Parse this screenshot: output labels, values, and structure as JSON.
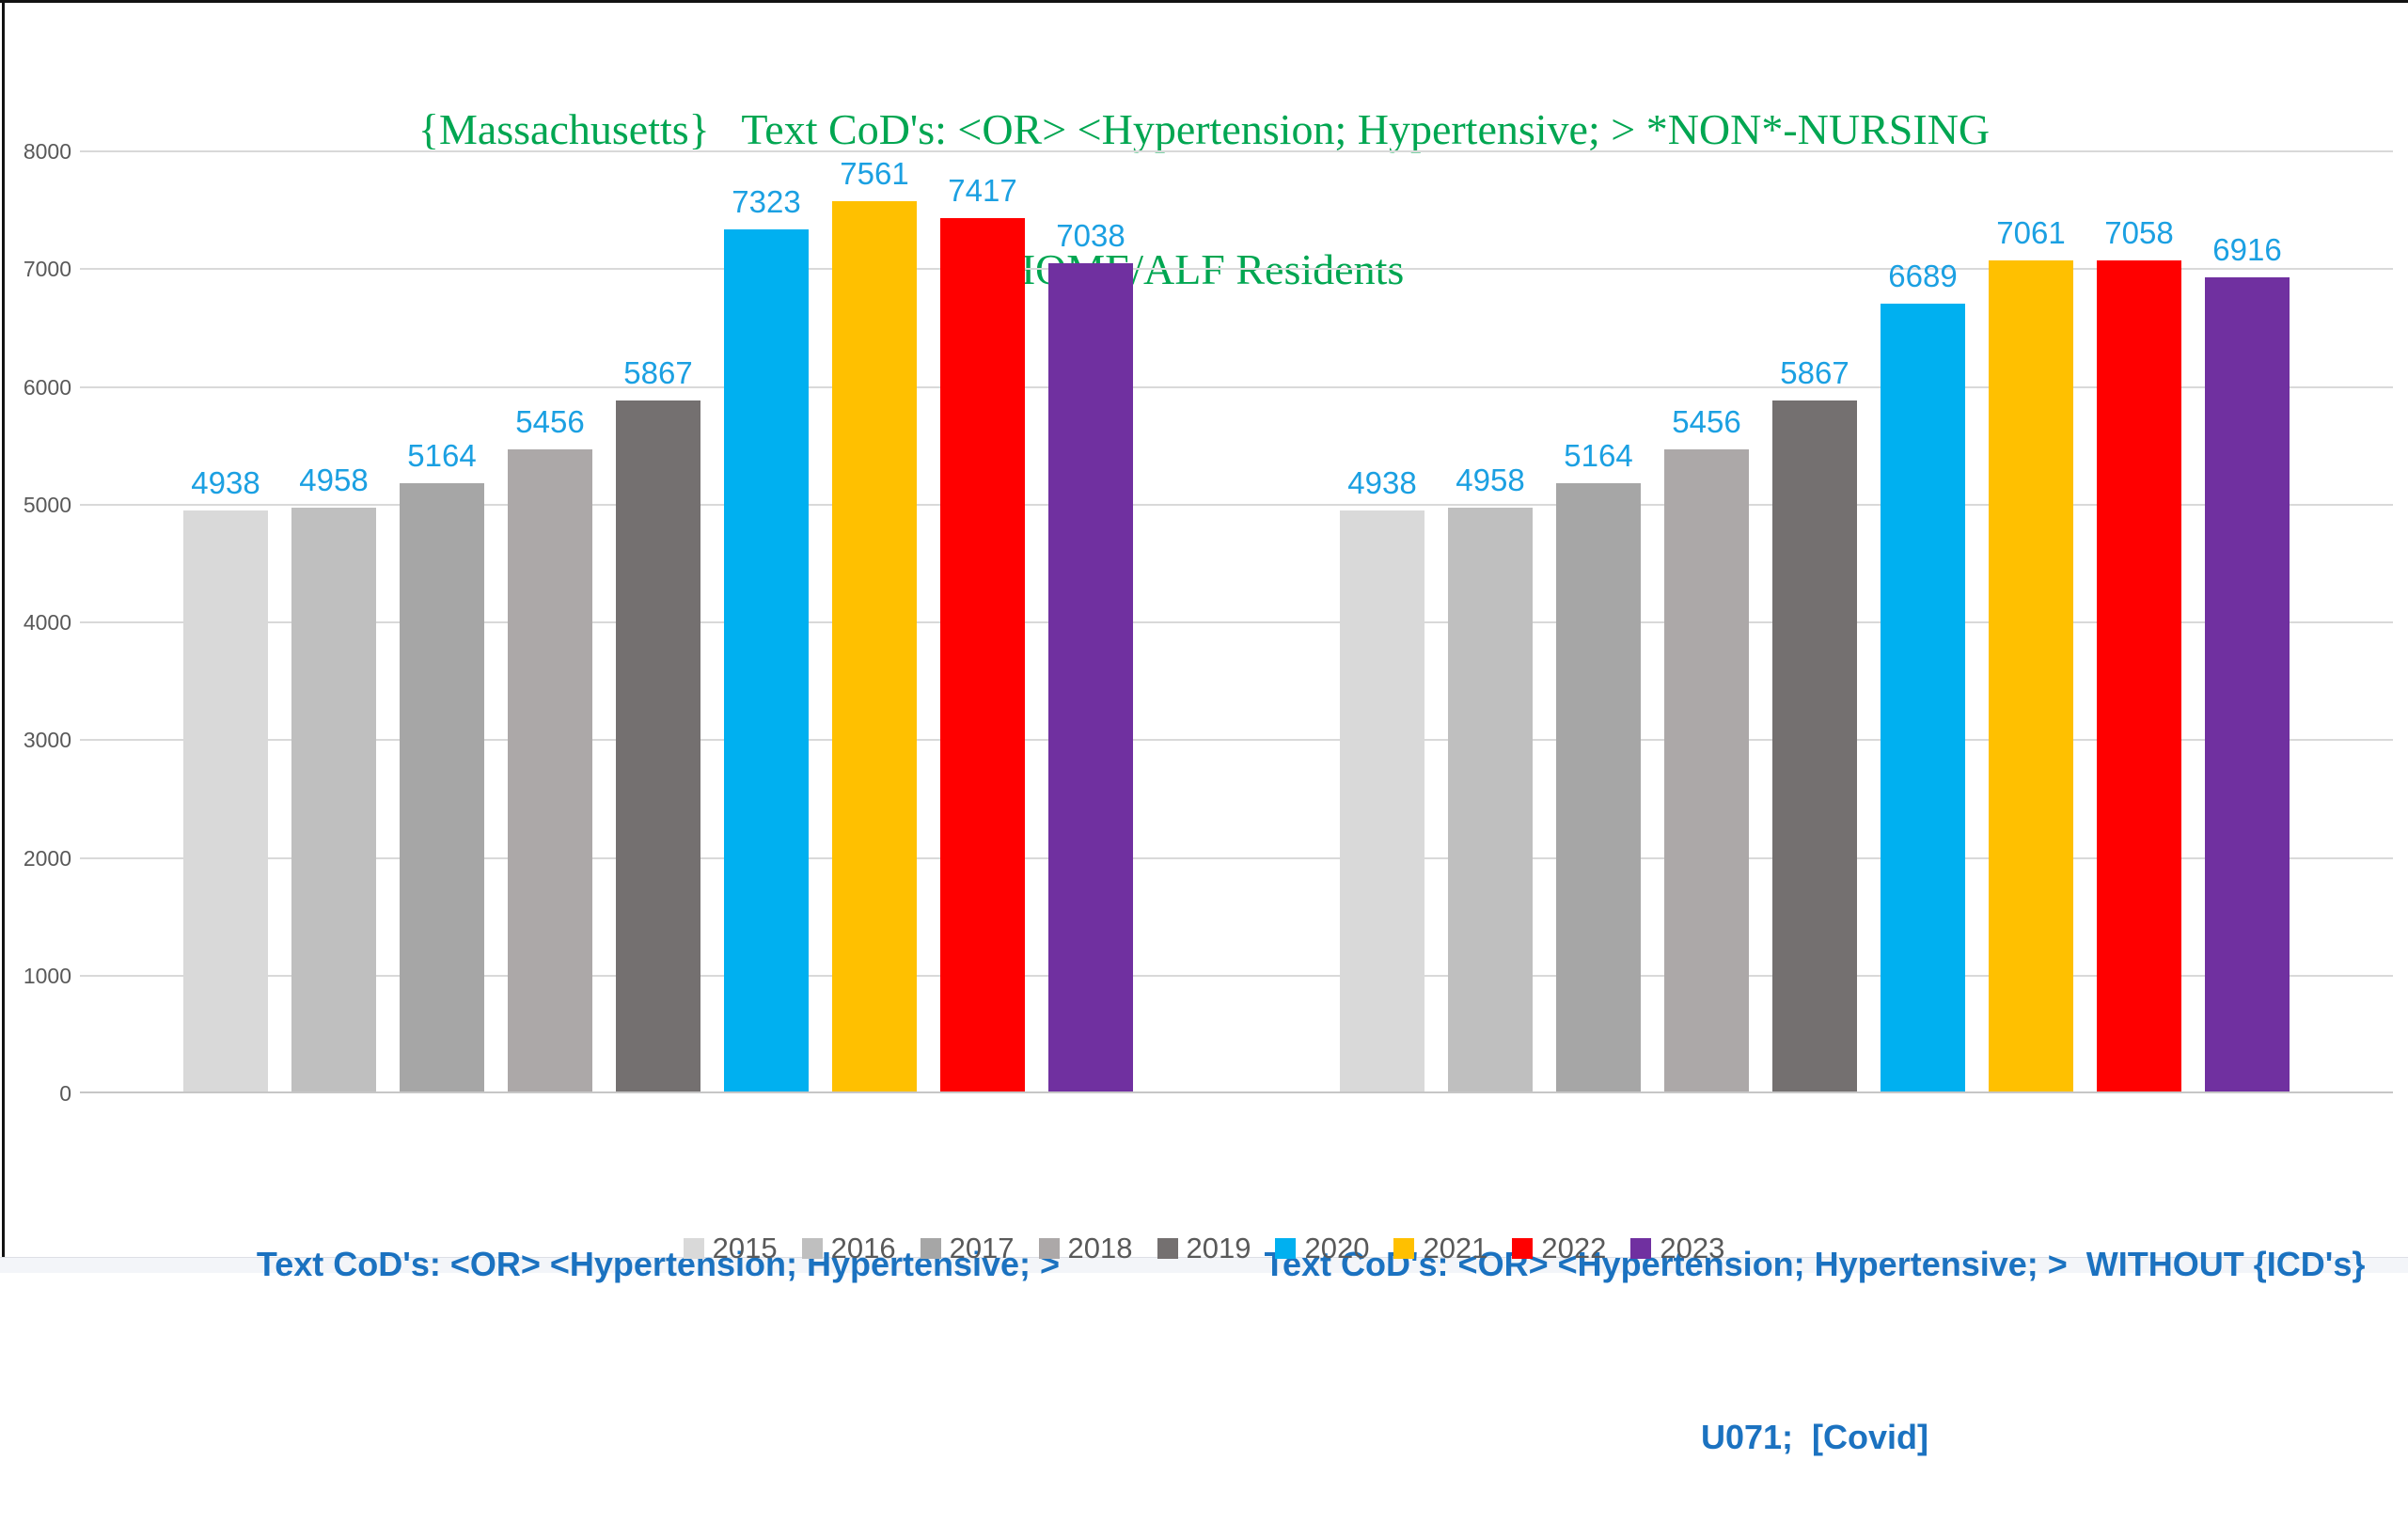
{
  "frame": {
    "background": "#FFFFFF",
    "top_border_color": "#121212",
    "left_border_color": "#121212",
    "bottom_strip_color": "#F3F5F9"
  },
  "chart_data": {
    "type": "bar",
    "title": "{Massachusetts}   Text CoD's: <OR> <Hypertension; Hypertensive; > *NON*-NURSING HOME/ALF Residents",
    "title_lines": [
      "{Massachusetts}   Text CoD's: <OR> <Hypertension; Hypertensive; > *NON*-NURSING",
      "HOME/ALF Residents"
    ],
    "title_color": "#00A651",
    "categories": [
      "Text CoD's: <OR> <Hypertension; Hypertensive; >",
      "Text CoD's: <OR> <Hypertension; Hypertensive; >  WITHOUT {ICD's} U071;  [Covid]"
    ],
    "category_label_lines": [
      [
        "Text CoD's: <OR> <Hypertension; Hypertensive; >"
      ],
      [
        "Text CoD's: <OR> <Hypertension; Hypertensive; >  WITHOUT {ICD's}",
        "U071;  [Covid]"
      ]
    ],
    "category_label_color": "#1B72C0",
    "series": [
      {
        "name": "2015",
        "color": "#D9D9D9",
        "values": [
          4938,
          4938
        ]
      },
      {
        "name": "2016",
        "color": "#BFBFBF",
        "values": [
          4958,
          4958
        ]
      },
      {
        "name": "2017",
        "color": "#A6A6A6",
        "values": [
          5164,
          5164
        ]
      },
      {
        "name": "2018",
        "color": "#ACA8A8",
        "values": [
          5456,
          5456
        ]
      },
      {
        "name": "2019",
        "color": "#747070",
        "values": [
          5867,
          5867
        ]
      },
      {
        "name": "2020",
        "color": "#00B0F0",
        "values": [
          7323,
          6689
        ]
      },
      {
        "name": "2021",
        "color": "#FFC000",
        "values": [
          7561,
          7061
        ]
      },
      {
        "name": "2022",
        "color": "#FF0000",
        "values": [
          7417,
          7058
        ]
      },
      {
        "name": "2023",
        "color": "#7030A0",
        "values": [
          7038,
          6916
        ]
      }
    ],
    "ylim": [
      0,
      8000
    ],
    "yticks": [
      0,
      1000,
      2000,
      3000,
      4000,
      5000,
      6000,
      7000,
      8000
    ],
    "grid": true,
    "legend_position": "bottom",
    "data_labels_shown": true,
    "data_label_color": "#1BA0E2",
    "tick_label_color": "#595959",
    "gridline_color": "#D9D9D9"
  }
}
